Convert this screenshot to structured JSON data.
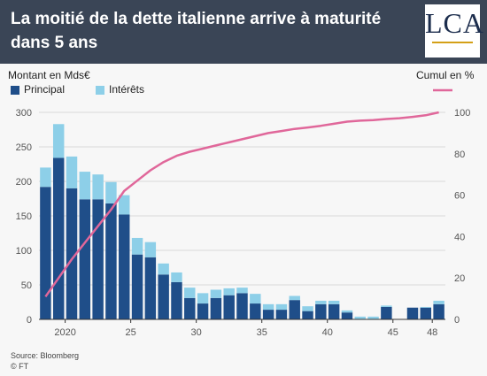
{
  "header": {
    "title": "La moitié de la dette italienne arrive à maturité dans 5 ans",
    "logo": "LCA"
  },
  "colors": {
    "header_bg": "#3a4556",
    "principal": "#1f4e89",
    "interest": "#8dcfe8",
    "cumul": "#e0679a",
    "grid": "#d9d9d9"
  },
  "chart_data": {
    "type": "bar",
    "stacked": true,
    "title": "La moitié de la dette italienne arrive à maturité dans 5 ans",
    "y_left_label": "Montant en Mds€",
    "y_right_label": "Cumul en %",
    "ylim_left": [
      0,
      300
    ],
    "ylim_right": [
      0,
      100
    ],
    "y_left_ticks": [
      0,
      50,
      100,
      150,
      200,
      250,
      300
    ],
    "y_right_ticks": [
      0,
      20,
      40,
      60,
      80,
      100
    ],
    "x_ticks": [
      {
        "x": 2020,
        "label": "2020"
      },
      {
        "x": 2025,
        "label": "25"
      },
      {
        "x": 2030,
        "label": "30"
      },
      {
        "x": 2035,
        "label": "35"
      },
      {
        "x": 2040,
        "label": "40"
      },
      {
        "x": 2045,
        "label": "45"
      },
      {
        "x": 2048,
        "label": "48"
      }
    ],
    "x": [
      2018.5,
      2019.5,
      2020.5,
      2021.5,
      2022.5,
      2023.5,
      2024.5,
      2025.5,
      2026.5,
      2027.5,
      2028.5,
      2029.5,
      2030.5,
      2031.5,
      2032.5,
      2033.5,
      2034.5,
      2035.5,
      2036.5,
      2037.5,
      2038.5,
      2039.5,
      2040.5,
      2041.5,
      2042.5,
      2043.5,
      2044.5,
      2045.5,
      2046.5,
      2047.5,
      2048.5
    ],
    "series": [
      {
        "name": "Principal",
        "type": "bar",
        "values": [
          192,
          234,
          190,
          174,
          174,
          168,
          152,
          94,
          90,
          65,
          54,
          31,
          23,
          31,
          35,
          38,
          23,
          14,
          14,
          28,
          12,
          22,
          22,
          10,
          0,
          0,
          18,
          0,
          17,
          17,
          22
        ]
      },
      {
        "name": "Intérêts",
        "type": "bar",
        "values": [
          28,
          49,
          46,
          40,
          36,
          31,
          28,
          24,
          22,
          16,
          14,
          15,
          15,
          12,
          10,
          8,
          14,
          8,
          8,
          6,
          7,
          5,
          5,
          3,
          4,
          4,
          2,
          0,
          0,
          1,
          5
        ]
      },
      {
        "name": "Cumul en %",
        "type": "line",
        "axis": "right",
        "x": [
          2018.5,
          2019.5,
          2020.5,
          2021.5,
          2022.5,
          2023.5,
          2024.5,
          2025.5,
          2026.5,
          2027.5,
          2028.5,
          2029.5,
          2030.5,
          2031.5,
          2032.5,
          2033.5,
          2034.5,
          2035.5,
          2036.5,
          2037.5,
          2038.5,
          2039.5,
          2040.5,
          2041.5,
          2042.5,
          2043.5,
          2044.5,
          2045.5,
          2046.5,
          2047.5,
          2048.5
        ],
        "values": [
          11,
          20,
          29,
          37,
          45,
          53,
          62,
          67,
          72,
          76,
          79,
          81,
          82.5,
          84,
          85.5,
          87,
          88.5,
          90,
          91,
          92,
          92.7,
          93.5,
          94.5,
          95.5,
          96,
          96.3,
          96.8,
          97.2,
          97.8,
          98.6,
          100
        ]
      }
    ],
    "legend": {
      "placement": "top-left",
      "entries": [
        "Principal",
        "Intérêts"
      ]
    },
    "grid": {
      "horizontal": true,
      "vertical": false
    },
    "source": "Source: Bloomberg",
    "credit": "© FT"
  }
}
